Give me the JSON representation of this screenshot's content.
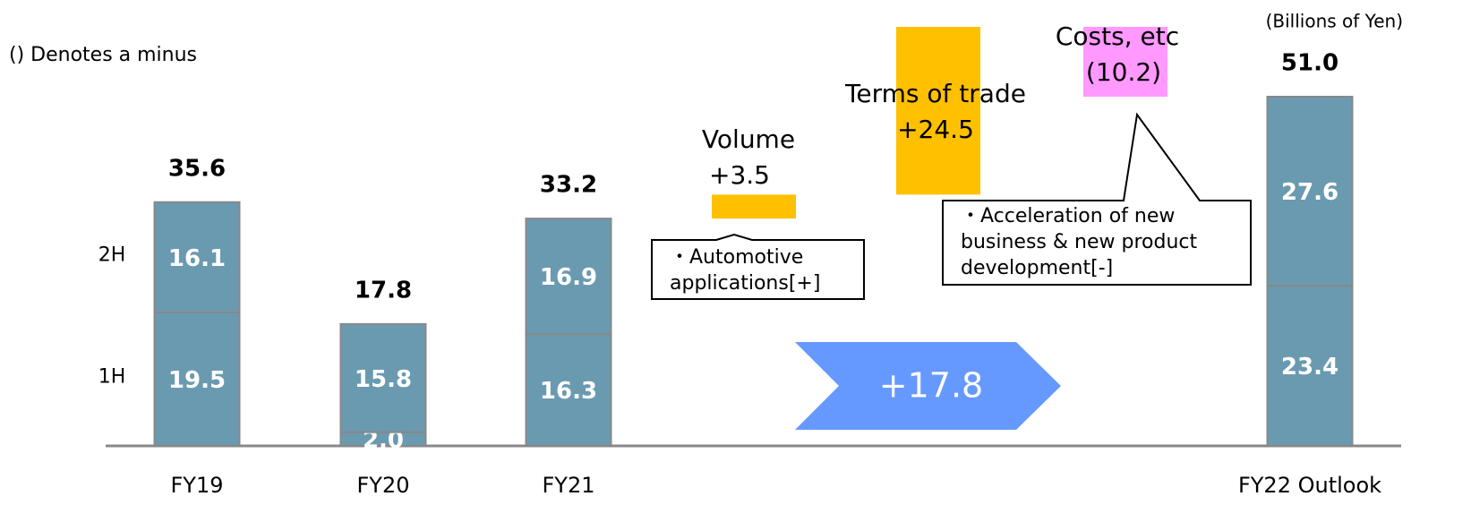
{
  "chart_data": {
    "type": "waterfall",
    "note": "() Denotes a minus",
    "unit": "(Billions of Yen)",
    "categories": [
      "FY19",
      "FY20",
      "FY21",
      "FY22 Outlook"
    ],
    "series": [
      {
        "name": "1H",
        "color": "#6a9ab0",
        "values": [
          19.5,
          2.0,
          16.3,
          23.4
        ],
        "value_labels": [
          "19.5",
          "2.0",
          "16.3",
          "23.4"
        ]
      },
      {
        "name": "2H",
        "color": "#6a9ab0",
        "values": [
          16.1,
          15.8,
          16.9,
          27.6
        ],
        "value_labels": [
          "16.1",
          "15.8",
          "16.9",
          "27.6"
        ]
      }
    ],
    "totals": [
      35.6,
      17.8,
      33.2,
      51.0
    ],
    "total_labels": [
      "35.6",
      "17.8",
      "33.2",
      "51.0"
    ],
    "steps": [
      {
        "name": "Volume",
        "value": 3.5,
        "label": "+3.5",
        "color": "#ffc000",
        "note": [
          "・Automotive",
          "applications[+]"
        ]
      },
      {
        "name": "Terms of trade",
        "value": 24.5,
        "label": "+24.5",
        "color": "#ffc000"
      },
      {
        "name": "Costs, etc",
        "value": -10.2,
        "label": "(10.2)",
        "color": "#ff99ff",
        "note": [
          "・Acceleration of new",
          "business & new product",
          "development[-]"
        ]
      }
    ],
    "change": {
      "value": 17.8,
      "label": "+17.8",
      "color": "#6699ff"
    }
  }
}
